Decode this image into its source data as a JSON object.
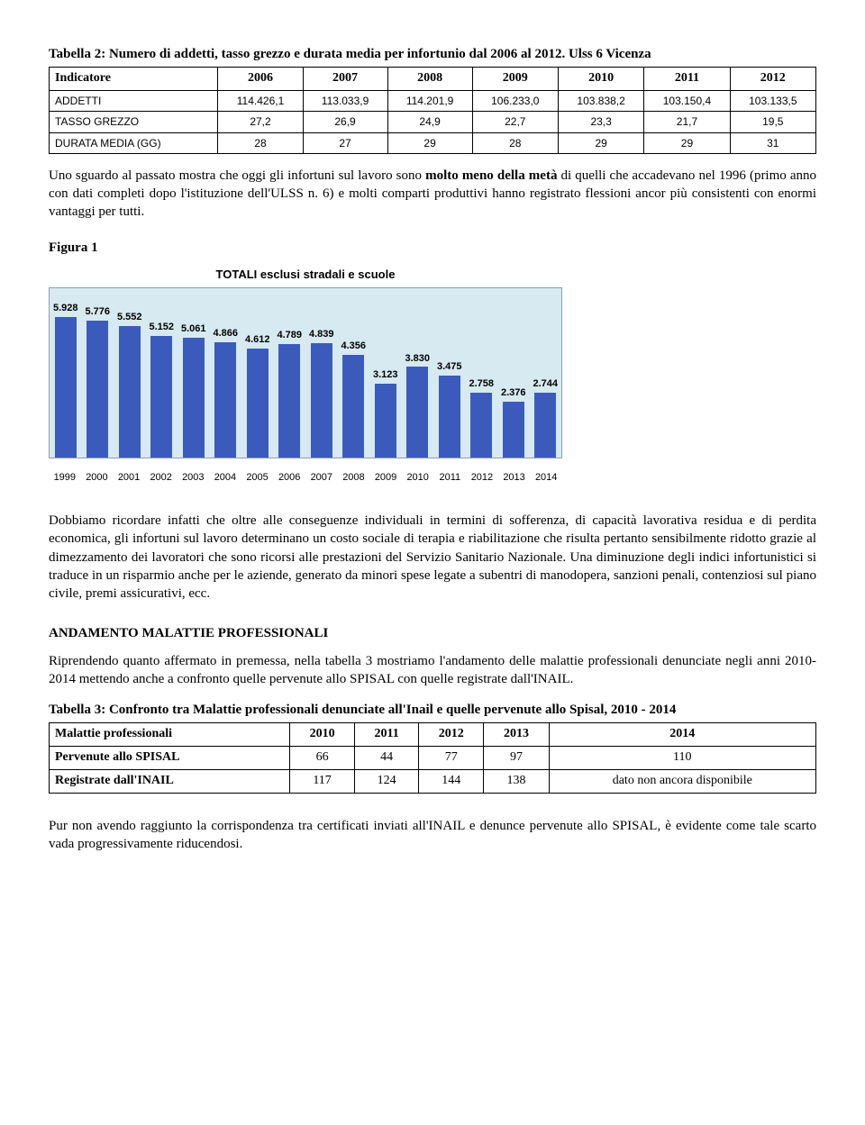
{
  "table2": {
    "caption": "Tabella 2: Numero di addetti, tasso grezzo e durata media per infortunio dal 2006 al 2012. Ulss 6 Vicenza",
    "headers": [
      "Indicatore",
      "2006",
      "2007",
      "2008",
      "2009",
      "2010",
      "2011",
      "2012"
    ],
    "rows": [
      [
        "ADDETTI",
        "114.426,1",
        "113.033,9",
        "114.201,9",
        "106.233,0",
        "103.838,2",
        "103.150,4",
        "103.133,5"
      ],
      [
        "TASSO GREZZO",
        "27,2",
        "26,9",
        "24,9",
        "22,7",
        "23,3",
        "21,7",
        "19,5"
      ],
      [
        "DURATA MEDIA (GG)",
        "28",
        "27",
        "29",
        "28",
        "29",
        "29",
        "31"
      ]
    ]
  },
  "para1": "Uno sguardo al passato mostra che oggi gli infortuni sul lavoro sono molto meno della metà di quelli che accadevano nel 1996 (primo anno con dati completi dopo l'istituzione dell'ULSS n. 6) e molti comparti produttivi hanno registrato flessioni ancor più consistenti con enormi vantaggi per tutti.",
  "fig1_label": "Figura 1",
  "chart": {
    "title": "TOTALI esclusi stradali e scuole",
    "categories": [
      "1999",
      "2000",
      "2001",
      "2002",
      "2003",
      "2004",
      "2005",
      "2006",
      "2007",
      "2008",
      "2009",
      "2010",
      "2011",
      "2012",
      "2013",
      "2014"
    ],
    "values": [
      5928,
      5776,
      5552,
      5152,
      5061,
      4866,
      4612,
      4789,
      4839,
      4356,
      3123,
      3830,
      3475,
      2758,
      2376,
      2744
    ],
    "labels": [
      "5.928",
      "5.776",
      "5.552",
      "5.152",
      "5.061",
      "4.866",
      "4.612",
      "4.789",
      "4.839",
      "4.356",
      "3.123",
      "3.830",
      "3.475",
      "2.758",
      "2.376",
      "2.744"
    ],
    "ymax": 6000,
    "bar_color": "#3b5bbc",
    "plot_bg": "#d7e9f1",
    "border_color": "#8ea0a8"
  },
  "para2": "Dobbiamo ricordare infatti che oltre alle conseguenze individuali in termini di sofferenza, di capacità lavorativa residua e di perdita economica, gli infortuni sul lavoro determinano un costo sociale di terapia e riabilitazione che risulta pertanto sensibilmente ridotto grazie al dimezzamento dei lavoratori che sono ricorsi alle prestazioni del Servizio Sanitario Nazionale. Una diminuzione degli indici infortunistici si traduce in un risparmio anche per le aziende, generato da minori spese legate a subentri di manodopera, sanzioni penali, contenziosi sul piano civile, premi assicurativi, ecc.",
  "section2_title": "ANDAMENTO MALATTIE PROFESSIONALI",
  "para3": "Riprendendo quanto affermato in premessa, nella tabella 3 mostriamo l'andamento delle malattie professionali denunciate negli anni 2010-2014 mettendo anche a confronto quelle pervenute allo SPISAL con quelle registrate dall'INAIL.",
  "table3": {
    "caption": "Tabella 3: Confronto tra Malattie professionali denunciate all'Inail e quelle pervenute allo Spisal, 2010 - 2014",
    "headers": [
      "Malattie professionali",
      "2010",
      "2011",
      "2012",
      "2013",
      "2014"
    ],
    "rows": [
      [
        "Pervenute allo SPISAL",
        "66",
        "44",
        "77",
        "97",
        "110"
      ],
      [
        "Registrate dall'INAIL",
        "117",
        "124",
        "144",
        "138",
        "dato non ancora disponibile"
      ]
    ]
  },
  "para4": "Pur non avendo raggiunto la corrispondenza tra certificati inviati all'INAIL e denunce pervenute allo SPISAL, è evidente come tale scarto vada progressivamente riducendosi."
}
